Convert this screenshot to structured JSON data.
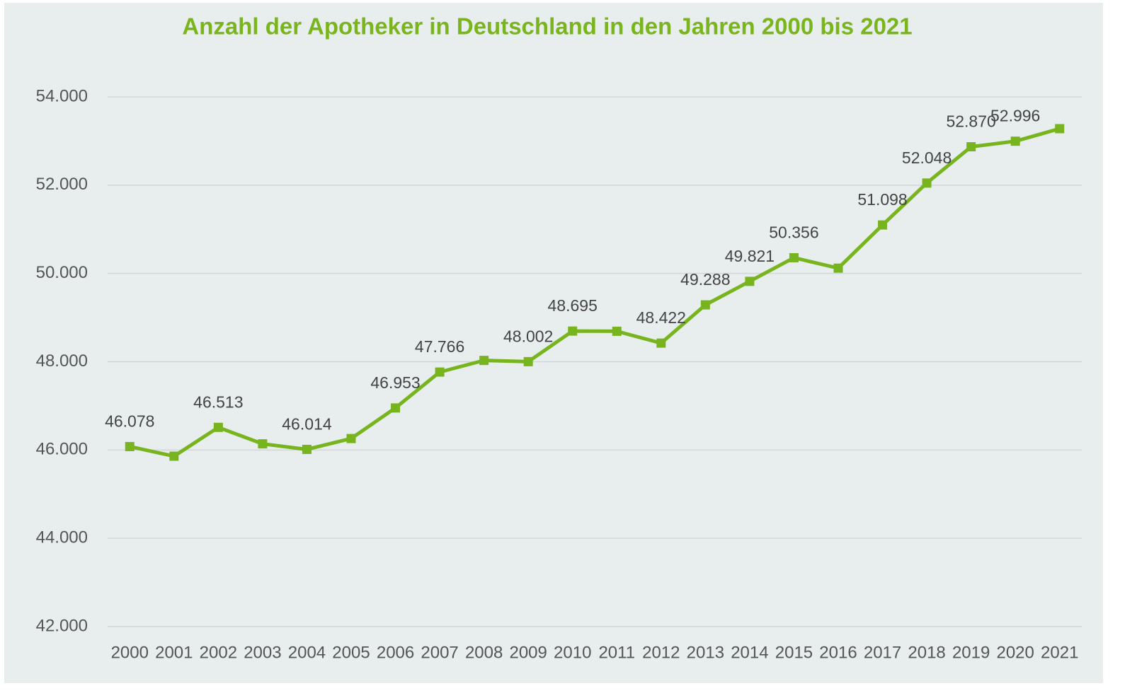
{
  "chart_data": {
    "type": "line",
    "title": "Anzahl der Apotheker in Deutschland in den Jahren 2000 bis 2021",
    "categories": [
      "2000",
      "2001",
      "2002",
      "2003",
      "2004",
      "2005",
      "2006",
      "2007",
      "2008",
      "2009",
      "2010",
      "2011",
      "2012",
      "2013",
      "2014",
      "2015",
      "2016",
      "2017",
      "2018",
      "2019",
      "2020",
      "2021"
    ],
    "series": [
      {
        "name": "Apotheker",
        "color": "#78b41e",
        "values": [
          46078,
          45860,
          46513,
          46140,
          46014,
          46260,
          46953,
          47766,
          48030,
          48002,
          48695,
          48690,
          48422,
          49288,
          49821,
          50356,
          50120,
          51098,
          52048,
          52870,
          52996,
          53280
        ],
        "value_labels": [
          "46.078",
          null,
          "46.513",
          null,
          "46.014",
          null,
          "46.953",
          "47.766",
          null,
          "48.002",
          "48.695",
          null,
          "48.422",
          "49.288",
          "49.821",
          "50.356",
          null,
          "51.098",
          "52.048",
          "52.870",
          "52.996",
          null
        ]
      }
    ],
    "ylim": [
      42000,
      54000
    ],
    "yticks": [
      {
        "value": 42000,
        "label": "42.000"
      },
      {
        "value": 44000,
        "label": "44.000"
      },
      {
        "value": 46000,
        "label": "46.000"
      },
      {
        "value": 48000,
        "label": "48.000"
      },
      {
        "value": 50000,
        "label": "50.000"
      },
      {
        "value": 52000,
        "label": "52.000"
      },
      {
        "value": 54000,
        "label": "54.000"
      }
    ],
    "grid": true
  }
}
